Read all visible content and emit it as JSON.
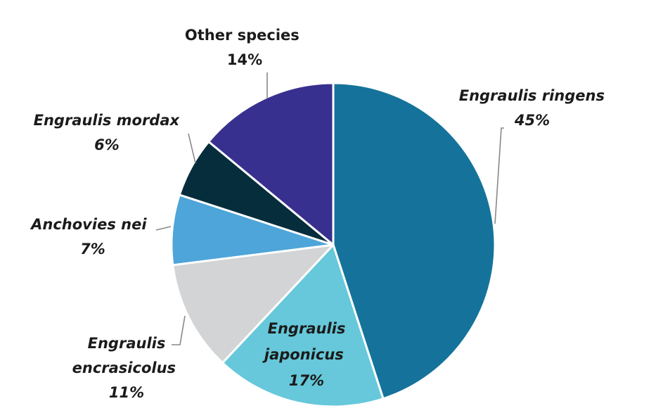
{
  "chart_data": {
    "type": "pie",
    "start_angle_deg": 0,
    "direction": "clockwise",
    "slices": [
      {
        "name": "Engraulis ringens",
        "value": 45,
        "pct_label": "45%",
        "color": "#15739b",
        "italic": true
      },
      {
        "name": "Engraulis japonicus",
        "value": 17,
        "pct_label": "17%",
        "color": "#66c8da",
        "italic": true
      },
      {
        "name": "Engraulis encrasicolus",
        "value": 11,
        "pct_label": "11%",
        "color": "#d3d4d5",
        "italic": true
      },
      {
        "name": "Anchovies nei",
        "value": 7,
        "pct_label": "7%",
        "color": "#4ea5d9",
        "italic": true
      },
      {
        "name": "Engraulis mordax",
        "value": 6,
        "pct_label": "6%",
        "color": "#062d3c",
        "italic": true
      },
      {
        "name": "Other species",
        "value": 14,
        "pct_label": "14%",
        "color": "#38308f",
        "italic": false
      }
    ]
  }
}
